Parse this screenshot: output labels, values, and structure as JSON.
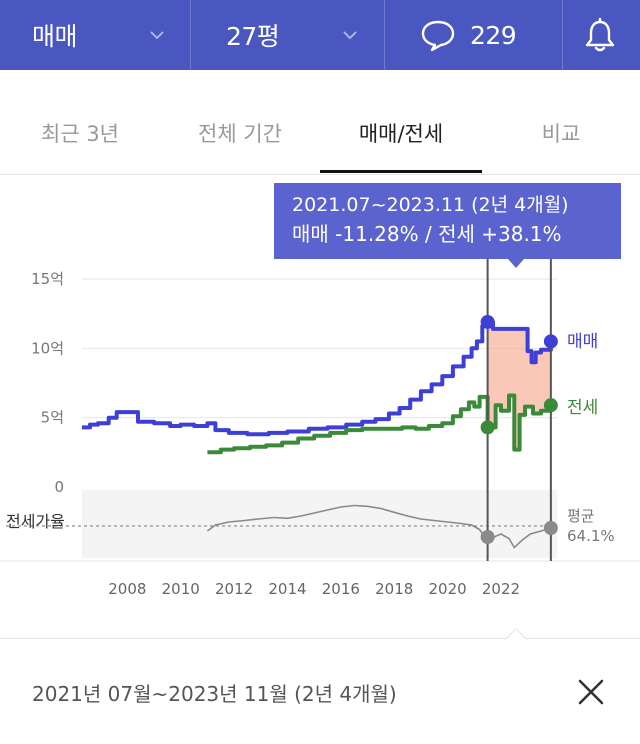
{
  "header": {
    "deal_type": "매매",
    "area": "27평",
    "comment_count": "229"
  },
  "tabs": [
    {
      "label": "최근 3년",
      "active": false
    },
    {
      "label": "전체 기간",
      "active": false
    },
    {
      "label": "매매/전세",
      "active": true
    },
    {
      "label": "비교",
      "active": false
    }
  ],
  "tooltip": {
    "period": "2021.07~2023.11 (2년 4개월)",
    "change": "매매 -11.28%  /  전세 +38.1%"
  },
  "chart_data": {
    "type": "line",
    "x_ticks": [
      "2008",
      "2010",
      "2012",
      "2014",
      "2016",
      "2018",
      "2020",
      "2022"
    ],
    "y_ticks": [
      {
        "value": 0,
        "label": "0"
      },
      {
        "value": 5,
        "label": "5억"
      },
      {
        "value": 10,
        "label": "10억"
      },
      {
        "value": 15,
        "label": "15억"
      }
    ],
    "ylim": [
      0,
      15
    ],
    "xlim": [
      2006.3,
      2024.1
    ],
    "selection": {
      "start": 2021.5,
      "end": 2023.87
    },
    "series": [
      {
        "name": "매매",
        "color": "#3d3fd6",
        "points": [
          [
            2006.3,
            4.3
          ],
          [
            2006.6,
            4.5
          ],
          [
            2006.9,
            4.6
          ],
          [
            2007.3,
            5.0
          ],
          [
            2007.6,
            5.4
          ],
          [
            2008.2,
            5.4
          ],
          [
            2008.4,
            4.7
          ],
          [
            2009.0,
            4.6
          ],
          [
            2009.6,
            4.4
          ],
          [
            2010.0,
            4.5
          ],
          [
            2010.5,
            4.4
          ],
          [
            2011.0,
            4.6
          ],
          [
            2011.3,
            4.1
          ],
          [
            2011.8,
            3.9
          ],
          [
            2012.5,
            3.8
          ],
          [
            2013.3,
            3.9
          ],
          [
            2014.0,
            4.0
          ],
          [
            2014.8,
            4.2
          ],
          [
            2015.5,
            4.3
          ],
          [
            2016.2,
            4.5
          ],
          [
            2016.8,
            4.7
          ],
          [
            2017.3,
            4.9
          ],
          [
            2017.8,
            5.3
          ],
          [
            2018.2,
            5.7
          ],
          [
            2018.6,
            6.3
          ],
          [
            2019.0,
            6.9
          ],
          [
            2019.4,
            7.4
          ],
          [
            2019.8,
            8.0
          ],
          [
            2020.2,
            8.7
          ],
          [
            2020.6,
            9.4
          ],
          [
            2020.9,
            10.0
          ],
          [
            2021.1,
            10.5
          ],
          [
            2021.3,
            11.6
          ],
          [
            2021.5,
            11.9
          ],
          [
            2021.7,
            11.4
          ],
          [
            2022.0,
            11.4
          ],
          [
            2022.6,
            11.4
          ],
          [
            2022.9,
            11.4
          ],
          [
            2023.0,
            9.8
          ],
          [
            2023.15,
            9.0
          ],
          [
            2023.3,
            9.7
          ],
          [
            2023.5,
            9.9
          ],
          [
            2023.87,
            10.5
          ]
        ],
        "end_label": "매매"
      },
      {
        "name": "전세",
        "color": "#3a8a3a",
        "points": [
          [
            2011.0,
            2.5
          ],
          [
            2011.5,
            2.7
          ],
          [
            2012.0,
            2.8
          ],
          [
            2012.6,
            2.9
          ],
          [
            2013.2,
            3.0
          ],
          [
            2013.8,
            3.2
          ],
          [
            2014.4,
            3.5
          ],
          [
            2015.0,
            3.7
          ],
          [
            2015.6,
            3.9
          ],
          [
            2016.2,
            4.1
          ],
          [
            2016.8,
            4.2
          ],
          [
            2017.3,
            4.2
          ],
          [
            2017.8,
            4.2
          ],
          [
            2018.3,
            4.3
          ],
          [
            2018.8,
            4.2
          ],
          [
            2019.3,
            4.4
          ],
          [
            2019.8,
            4.6
          ],
          [
            2020.2,
            5.1
          ],
          [
            2020.5,
            5.6
          ],
          [
            2020.8,
            6.1
          ],
          [
            2021.0,
            5.8
          ],
          [
            2021.2,
            6.5
          ],
          [
            2021.5,
            4.3
          ],
          [
            2021.8,
            5.9
          ],
          [
            2022.0,
            5.5
          ],
          [
            2022.3,
            6.6
          ],
          [
            2022.5,
            2.7
          ],
          [
            2022.7,
            5.2
          ],
          [
            2022.9,
            5.8
          ],
          [
            2023.2,
            5.3
          ],
          [
            2023.5,
            5.5
          ],
          [
            2023.87,
            5.9
          ]
        ],
        "end_label": "전세"
      }
    ],
    "ratio": {
      "label": "전세가율",
      "avg_label": "평균",
      "avg_value": "64.1%",
      "points": [
        [
          2011.0,
          52
        ],
        [
          2011.3,
          60
        ],
        [
          2011.8,
          64
        ],
        [
          2012.4,
          66
        ],
        [
          2012.9,
          68
        ],
        [
          2013.5,
          70
        ],
        [
          2014.0,
          69
        ],
        [
          2014.5,
          72
        ],
        [
          2015.0,
          76
        ],
        [
          2015.5,
          80
        ],
        [
          2016.0,
          84
        ],
        [
          2016.5,
          86
        ],
        [
          2017.0,
          85
        ],
        [
          2017.5,
          82
        ],
        [
          2018.0,
          77
        ],
        [
          2018.5,
          72
        ],
        [
          2019.0,
          68
        ],
        [
          2019.5,
          66
        ],
        [
          2020.0,
          64
        ],
        [
          2020.5,
          62
        ],
        [
          2020.9,
          60
        ],
        [
          2021.2,
          54
        ],
        [
          2021.5,
          38
        ],
        [
          2021.8,
          45
        ],
        [
          2022.0,
          48
        ],
        [
          2022.3,
          42
        ],
        [
          2022.5,
          30
        ],
        [
          2022.8,
          40
        ],
        [
          2023.1,
          48
        ],
        [
          2023.5,
          52
        ],
        [
          2023.87,
          56
        ]
      ]
    }
  },
  "footer": {
    "period_text": "2021년 07월~2023년 11월 (2년 4개월)"
  }
}
